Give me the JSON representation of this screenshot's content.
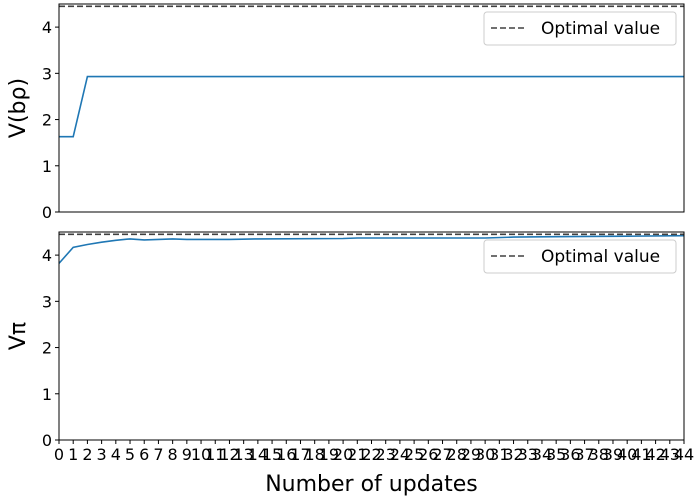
{
  "chart_data": [
    {
      "type": "line",
      "ylabel": "V(bρ)",
      "ylim": [
        0,
        4.5
      ],
      "yticks": [
        0,
        1,
        2,
        3,
        4
      ],
      "xlim": [
        0,
        44
      ],
      "series": [
        {
          "name": "",
          "color": "#1f77b4",
          "style": "solid",
          "x": [
            0,
            1,
            2,
            44
          ],
          "y": [
            1.63,
            1.63,
            2.93,
            2.93
          ]
        }
      ],
      "reference_line": {
        "label": "Optimal value",
        "y": 4.45,
        "color": "#404040",
        "style": "dashed"
      },
      "legend": {
        "position": "top-right",
        "entries": [
          "Optimal value"
        ]
      },
      "show_xticks": false
    },
    {
      "type": "line",
      "ylabel": "Vπ",
      "xlabel": "Number of updates",
      "ylim": [
        0,
        4.5
      ],
      "yticks": [
        0,
        1,
        2,
        3,
        4
      ],
      "xlim": [
        0,
        44
      ],
      "xticks": [
        "0",
        "1",
        "2",
        "3",
        "4",
        "5",
        "6",
        "7",
        "8",
        "9",
        "10",
        "11",
        "12",
        "13",
        "14",
        "15",
        "16",
        "17",
        "18",
        "19",
        "20",
        "21",
        "22",
        "23",
        "24",
        "25",
        "26",
        "27",
        "28",
        "29",
        "30",
        "31",
        "32",
        "33",
        "34",
        "35",
        "36",
        "37",
        "38",
        "39",
        "40",
        "41",
        "42",
        "43",
        "44"
      ],
      "series": [
        {
          "name": "",
          "color": "#1f77b4",
          "style": "solid",
          "x": [
            0,
            1,
            2,
            3,
            4,
            5,
            6,
            7,
            8,
            9,
            10,
            12,
            14,
            20,
            21,
            24,
            30,
            32,
            36,
            40,
            44
          ],
          "y": [
            3.82,
            4.17,
            4.23,
            4.28,
            4.32,
            4.35,
            4.33,
            4.34,
            4.35,
            4.34,
            4.34,
            4.34,
            4.35,
            4.36,
            4.37,
            4.37,
            4.37,
            4.39,
            4.4,
            4.41,
            4.42
          ]
        }
      ],
      "reference_line": {
        "label": "Optimal value",
        "y": 4.45,
        "color": "#404040",
        "style": "dashed"
      },
      "legend": {
        "position": "top-right",
        "entries": [
          "Optimal value"
        ]
      },
      "show_xticks": true
    }
  ]
}
